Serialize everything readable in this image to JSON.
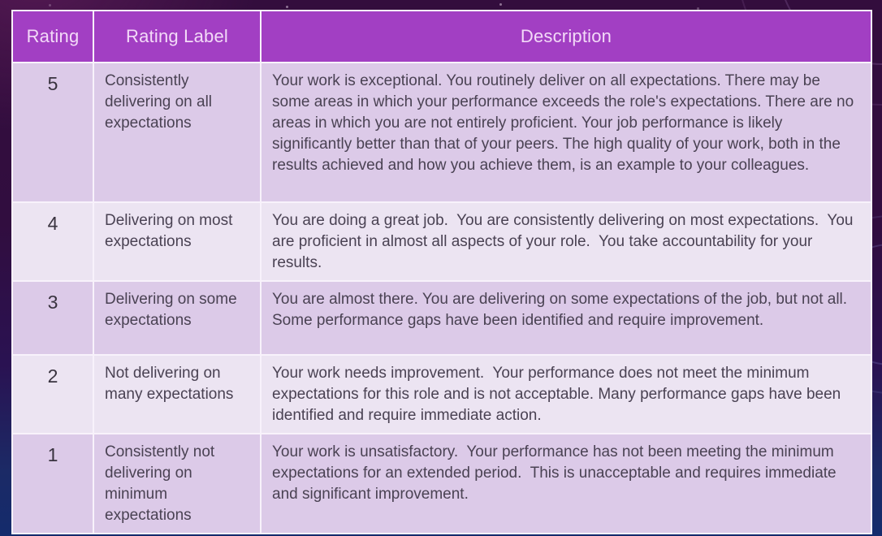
{
  "colors": {
    "header_bg": "#a23fc3",
    "header_text": "#f3daf8",
    "row_dark": "#dccae8",
    "row_light": "#ece4f2",
    "cell_border": "#f8f2fb",
    "body_text": "#4a4253",
    "background_top": "#330d3d",
    "background_bottom": "#142b6c"
  },
  "table": {
    "headers": [
      "Rating",
      "Rating Label",
      "Description"
    ],
    "rows": [
      {
        "rating": "5",
        "label": "Consistently delivering on all expectations",
        "description": "Your work is exceptional. You routinely deliver on all expectations. There may be some areas in which your performance exceeds the role's expectations. There are no areas in which you are not entirely proficient. Your job performance is likely significantly better than that of your peers. The high quality of your work, both in the results achieved and how you achieve them, is an example to your colleagues."
      },
      {
        "rating": "4",
        "label": "Delivering on most expectations",
        "description": "You are doing a great job.  You are consistently delivering on most expectations.  You are proficient in almost all aspects of your role.  You take accountability for your results."
      },
      {
        "rating": "3",
        "label": "Delivering on some expectations",
        "description": "You are almost there. You are delivering on some expectations of the job, but not all. Some performance gaps have been identified and require improvement."
      },
      {
        "rating": "2",
        "label": "Not delivering on many expectations",
        "description": "Your work needs improvement.  Your performance does not meet the minimum expectations for this role and is not acceptable. Many performance gaps have been identified and require immediate action."
      },
      {
        "rating": "1",
        "label": "Consistently not delivering on minimum expectations",
        "description": "Your work is unsatisfactory.  Your performance has not been meeting the minimum expectations for an extended period.  This is unacceptable and requires immediate and significant improvement."
      }
    ]
  }
}
